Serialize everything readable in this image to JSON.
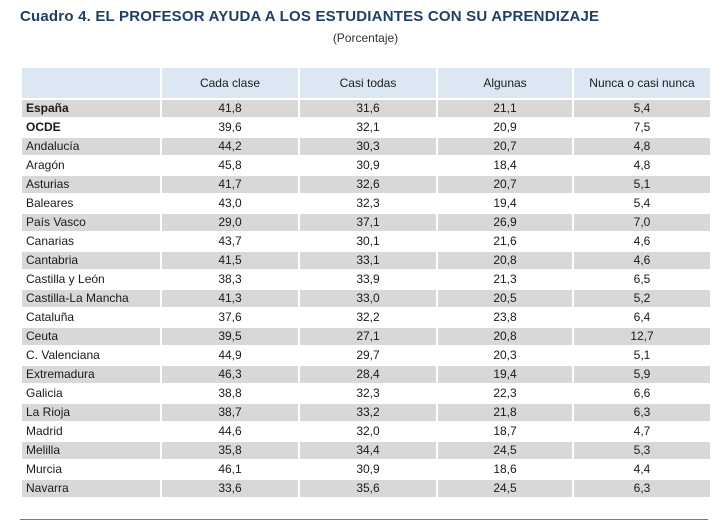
{
  "title": "Cuadro 4. EL PROFESOR AYUDA A LOS ESTUDIANTES CON SU APRENDIZAJE",
  "subtitle": "(Porcentaje)",
  "table": {
    "headers": [
      "",
      "Cada clase",
      "Casi todas",
      "Algunas",
      "Nunca o casi nunca"
    ],
    "rows": [
      {
        "name": "España",
        "values": [
          "41,8",
          "31,6",
          "21,1",
          "5,4"
        ]
      },
      {
        "name": "OCDE",
        "values": [
          "39,6",
          "32,1",
          "20,9",
          "7,5"
        ]
      },
      {
        "name": "Andalucía",
        "values": [
          "44,2",
          "30,3",
          "20,7",
          "4,8"
        ]
      },
      {
        "name": "Aragón",
        "values": [
          "45,8",
          "30,9",
          "18,4",
          "4,8"
        ]
      },
      {
        "name": "Asturias",
        "values": [
          "41,7",
          "32,6",
          "20,7",
          "5,1"
        ]
      },
      {
        "name": "Baleares",
        "values": [
          "43,0",
          "32,3",
          "19,4",
          "5,4"
        ]
      },
      {
        "name": "País Vasco",
        "values": [
          "29,0",
          "37,1",
          "26,9",
          "7,0"
        ]
      },
      {
        "name": "Canarias",
        "values": [
          "43,7",
          "30,1",
          "21,6",
          "4,6"
        ]
      },
      {
        "name": "Cantabria",
        "values": [
          "41,5",
          "33,1",
          "20,8",
          "4,6"
        ]
      },
      {
        "name": "Castilla y León",
        "values": [
          "38,3",
          "33,9",
          "21,3",
          "6,5"
        ]
      },
      {
        "name": "Castilla-La Mancha",
        "values": [
          "41,3",
          "33,0",
          "20,5",
          "5,2"
        ]
      },
      {
        "name": "Cataluña",
        "values": [
          "37,6",
          "32,2",
          "23,8",
          "6,4"
        ]
      },
      {
        "name": "Ceuta",
        "values": [
          "39,5",
          "27,1",
          "20,8",
          "12,7"
        ]
      },
      {
        "name": "C. Valenciana",
        "values": [
          "44,9",
          "29,7",
          "20,3",
          "5,1"
        ]
      },
      {
        "name": "Extremadura",
        "values": [
          "46,3",
          "28,4",
          "19,4",
          "5,9"
        ]
      },
      {
        "name": "Galicia",
        "values": [
          "38,8",
          "32,3",
          "22,3",
          "6,6"
        ]
      },
      {
        "name": "La Rioja",
        "values": [
          "38,7",
          "33,2",
          "21,8",
          "6,3"
        ]
      },
      {
        "name": "Madrid",
        "values": [
          "44,6",
          "32,0",
          "18,7",
          "4,7"
        ]
      },
      {
        "name": "Melilla",
        "values": [
          "35,8",
          "34,4",
          "24,5",
          "5,3"
        ]
      },
      {
        "name": "Murcia",
        "values": [
          "46,1",
          "30,9",
          "18,6",
          "4,4"
        ]
      },
      {
        "name": "Navarra",
        "values": [
          "33,6",
          "35,6",
          "24,5",
          "6,3"
        ]
      }
    ]
  }
}
